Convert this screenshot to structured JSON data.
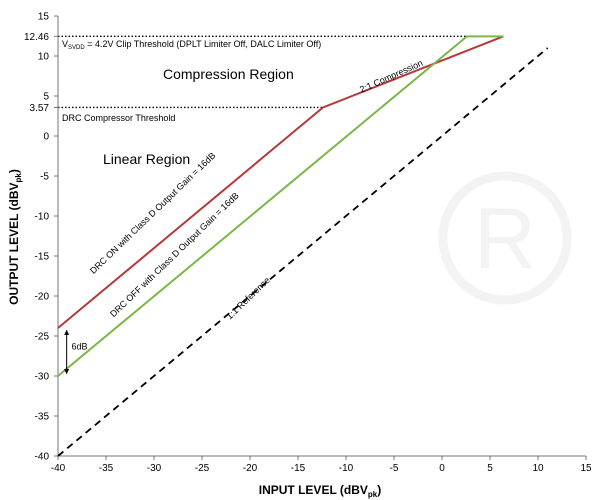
{
  "chart_data": {
    "type": "line",
    "xlabel": {
      "main": "INPUT LEVEL (dBV",
      "sub": "pk",
      "close": ")"
    },
    "ylabel": {
      "main": "OUTPUT LEVEL (dBV",
      "sub": "pk",
      "close": ")"
    },
    "xlim": [
      -40,
      15
    ],
    "ylim": [
      -40,
      15
    ],
    "x_ticks": [
      -40,
      -35,
      -30,
      -25,
      -20,
      -15,
      -10,
      -5,
      0,
      5,
      10,
      15
    ],
    "y_ticks": [
      -40,
      -35,
      -30,
      -25,
      -20,
      -15,
      -10,
      -5,
      0,
      5,
      10,
      15
    ],
    "y_extra_ticks": [
      3.57,
      12.46
    ],
    "colors": {
      "drc_on": "#b5383c",
      "drc_off": "#7ab648",
      "reference": "#000000",
      "threshold": "#000000",
      "watermark": "#f4f4f4"
    },
    "series": [
      {
        "name": "DRC ON with Class D Output Gain = 16dB",
        "x": [
          -40,
          -12.4,
          6.4
        ],
        "y": [
          -24,
          3.57,
          12.46
        ]
      },
      {
        "name": "DRC OFF with Class D Output Gain = 16dB",
        "x": [
          -40,
          2.6,
          6.4
        ],
        "y": [
          -30,
          12.46,
          12.46
        ]
      },
      {
        "name": "1:1 Reference",
        "x": [
          -40,
          11
        ],
        "y": [
          -40,
          11
        ]
      }
    ],
    "thresholds": [
      {
        "y": 12.46,
        "x_end": 2.6,
        "label_prefix": "V",
        "label_sub": "SVDD",
        "label_rest": " = 4.2V Clip Threshold (DPLT Limiter Off, DALC Limiter Off)"
      },
      {
        "y": 3.57,
        "x_end": -12.4,
        "label": "DRC  Compressor Threshold"
      }
    ],
    "annotations": {
      "compression_region": "Compression Region",
      "linear_region": "Linear Region",
      "compression_ratio": "2:1 Compression",
      "gain_difference": "6dB",
      "reference_label": "1:1 Reference"
    }
  }
}
